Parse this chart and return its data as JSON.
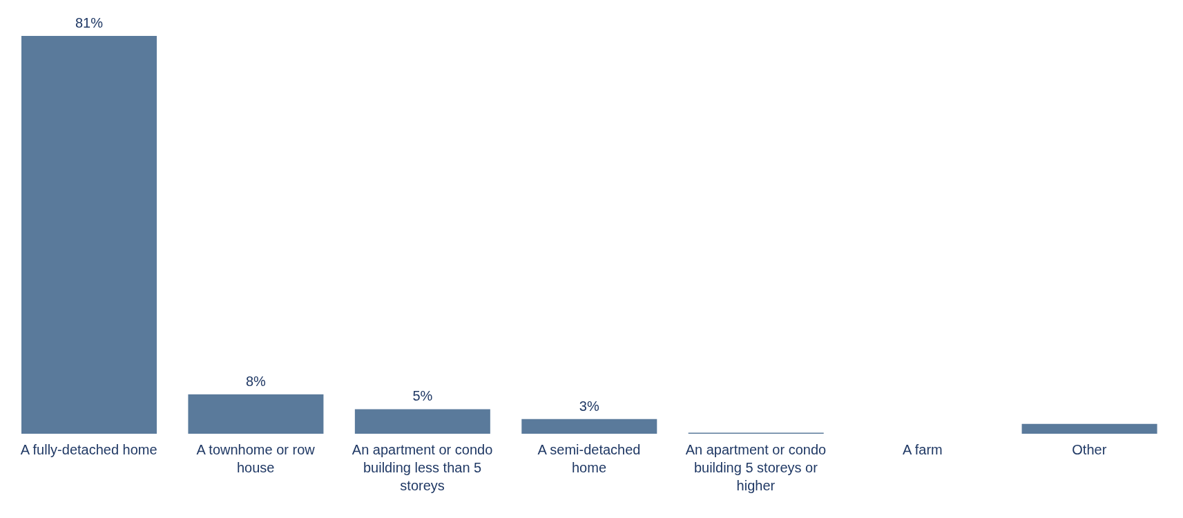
{
  "chart_data": {
    "type": "bar",
    "categories": [
      "A fully-detached home",
      "A townhome or row house",
      "An apartment or condo building less than 5 storeys",
      "A semi-detached home",
      "An apartment or condo building 5 storeys or higher",
      "A farm",
      "Other"
    ],
    "values": [
      81,
      8,
      5,
      3,
      0.2,
      0,
      2
    ],
    "value_labels": [
      "81%",
      "8%",
      "5%",
      "3%",
      null,
      null,
      null
    ],
    "color": "#5a7a9b",
    "grid": false,
    "legend": false
  }
}
